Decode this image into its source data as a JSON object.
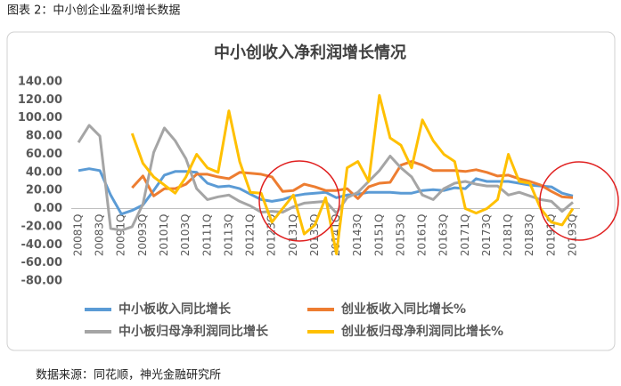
{
  "caption": "图表 2：中小创企业盈利增长数据",
  "source": "数据来源：同花顺，神光金融研究所",
  "chart_data": {
    "type": "line",
    "title": "中小创收入净利润增长情况",
    "categories": [
      "20081Q",
      null,
      "20083Q",
      null,
      "20091Q",
      null,
      "20093Q",
      null,
      "20101Q",
      null,
      "20103Q",
      null,
      "20111Q",
      null,
      "20113Q",
      null,
      "20121Q",
      null,
      "20123Q",
      null,
      "20131Q",
      null,
      "20133Q",
      null,
      "20141Q",
      null,
      "20143Q",
      null,
      "20151Q",
      null,
      "20153Q",
      null,
      "20161Q",
      null,
      "20163Q",
      null,
      "20171Q",
      null,
      "20173Q",
      null,
      "20181Q",
      null,
      "20183Q",
      null,
      "20191Q",
      null,
      "20193Q"
    ],
    "series": [
      {
        "name": "中小板收入同比增长",
        "color": "#5b9bd5",
        "values": [
          42,
          44,
          42,
          15,
          -6,
          -2,
          4,
          20,
          37,
          41,
          41,
          40,
          28,
          24,
          25,
          22,
          16,
          10,
          8,
          10,
          14,
          16,
          17,
          18,
          12,
          15,
          16,
          18,
          18,
          18,
          17,
          17,
          20,
          21,
          20,
          23,
          22,
          33,
          30,
          30,
          30,
          28,
          26,
          25,
          24,
          17,
          14
        ]
      },
      {
        "name": "创业板收入同比增长%",
        "color": "#ed7d31",
        "values": [
          null,
          null,
          null,
          null,
          null,
          23,
          36,
          14,
          22,
          22,
          27,
          38,
          38,
          35,
          33,
          40,
          39,
          38,
          35,
          19,
          20,
          27,
          24,
          20,
          20,
          22,
          11,
          24,
          28,
          29,
          48,
          52,
          48,
          42,
          42,
          42,
          41,
          43,
          40,
          36,
          37,
          33,
          30,
          26,
          19,
          13,
          12
        ]
      },
      {
        "name": "中小板归母净利润同比增长",
        "color": "#a5a5a5",
        "values": [
          73,
          92,
          80,
          -22,
          -24,
          -20,
          5,
          62,
          89,
          75,
          55,
          22,
          10,
          13,
          15,
          8,
          3,
          -4,
          -3,
          -4,
          2,
          6,
          7,
          8,
          -5,
          12,
          18,
          30,
          42,
          58,
          45,
          35,
          15,
          10,
          22,
          28,
          30,
          27,
          25,
          25,
          15,
          18,
          14,
          10,
          8,
          -3,
          7
        ]
      },
      {
        "name": "创业板归母净利润同比增长%",
        "color": "#ffc000",
        "values": [
          null,
          null,
          null,
          null,
          null,
          83,
          50,
          35,
          26,
          17,
          35,
          60,
          45,
          40,
          108,
          52,
          18,
          17,
          -15,
          0,
          15,
          -28,
          -18,
          12,
          -50,
          45,
          52,
          30,
          125,
          78,
          70,
          45,
          98,
          75,
          60,
          52,
          0,
          -5,
          0,
          10,
          60,
          30,
          28,
          0,
          -15,
          -18,
          0
        ]
      }
    ],
    "ylim": [
      -80,
      140
    ],
    "yticks": [
      {
        "value": -80,
        "label": "-80.00"
      },
      {
        "value": -60,
        "label": "-60.00"
      },
      {
        "value": -40,
        "label": "-40.00"
      },
      {
        "value": -20,
        "label": "-20.00"
      },
      {
        "value": 0,
        "label": "0.00"
      },
      {
        "value": 20,
        "label": "20.00"
      },
      {
        "value": 40,
        "label": "40.00"
      },
      {
        "value": 60,
        "label": "60.00"
      },
      {
        "value": 80,
        "label": "80.00"
      },
      {
        "value": 100,
        "label": "100.00"
      },
      {
        "value": 120,
        "label": "120.00"
      },
      {
        "value": 140,
        "label": "140.00"
      }
    ],
    "grid": false
  }
}
